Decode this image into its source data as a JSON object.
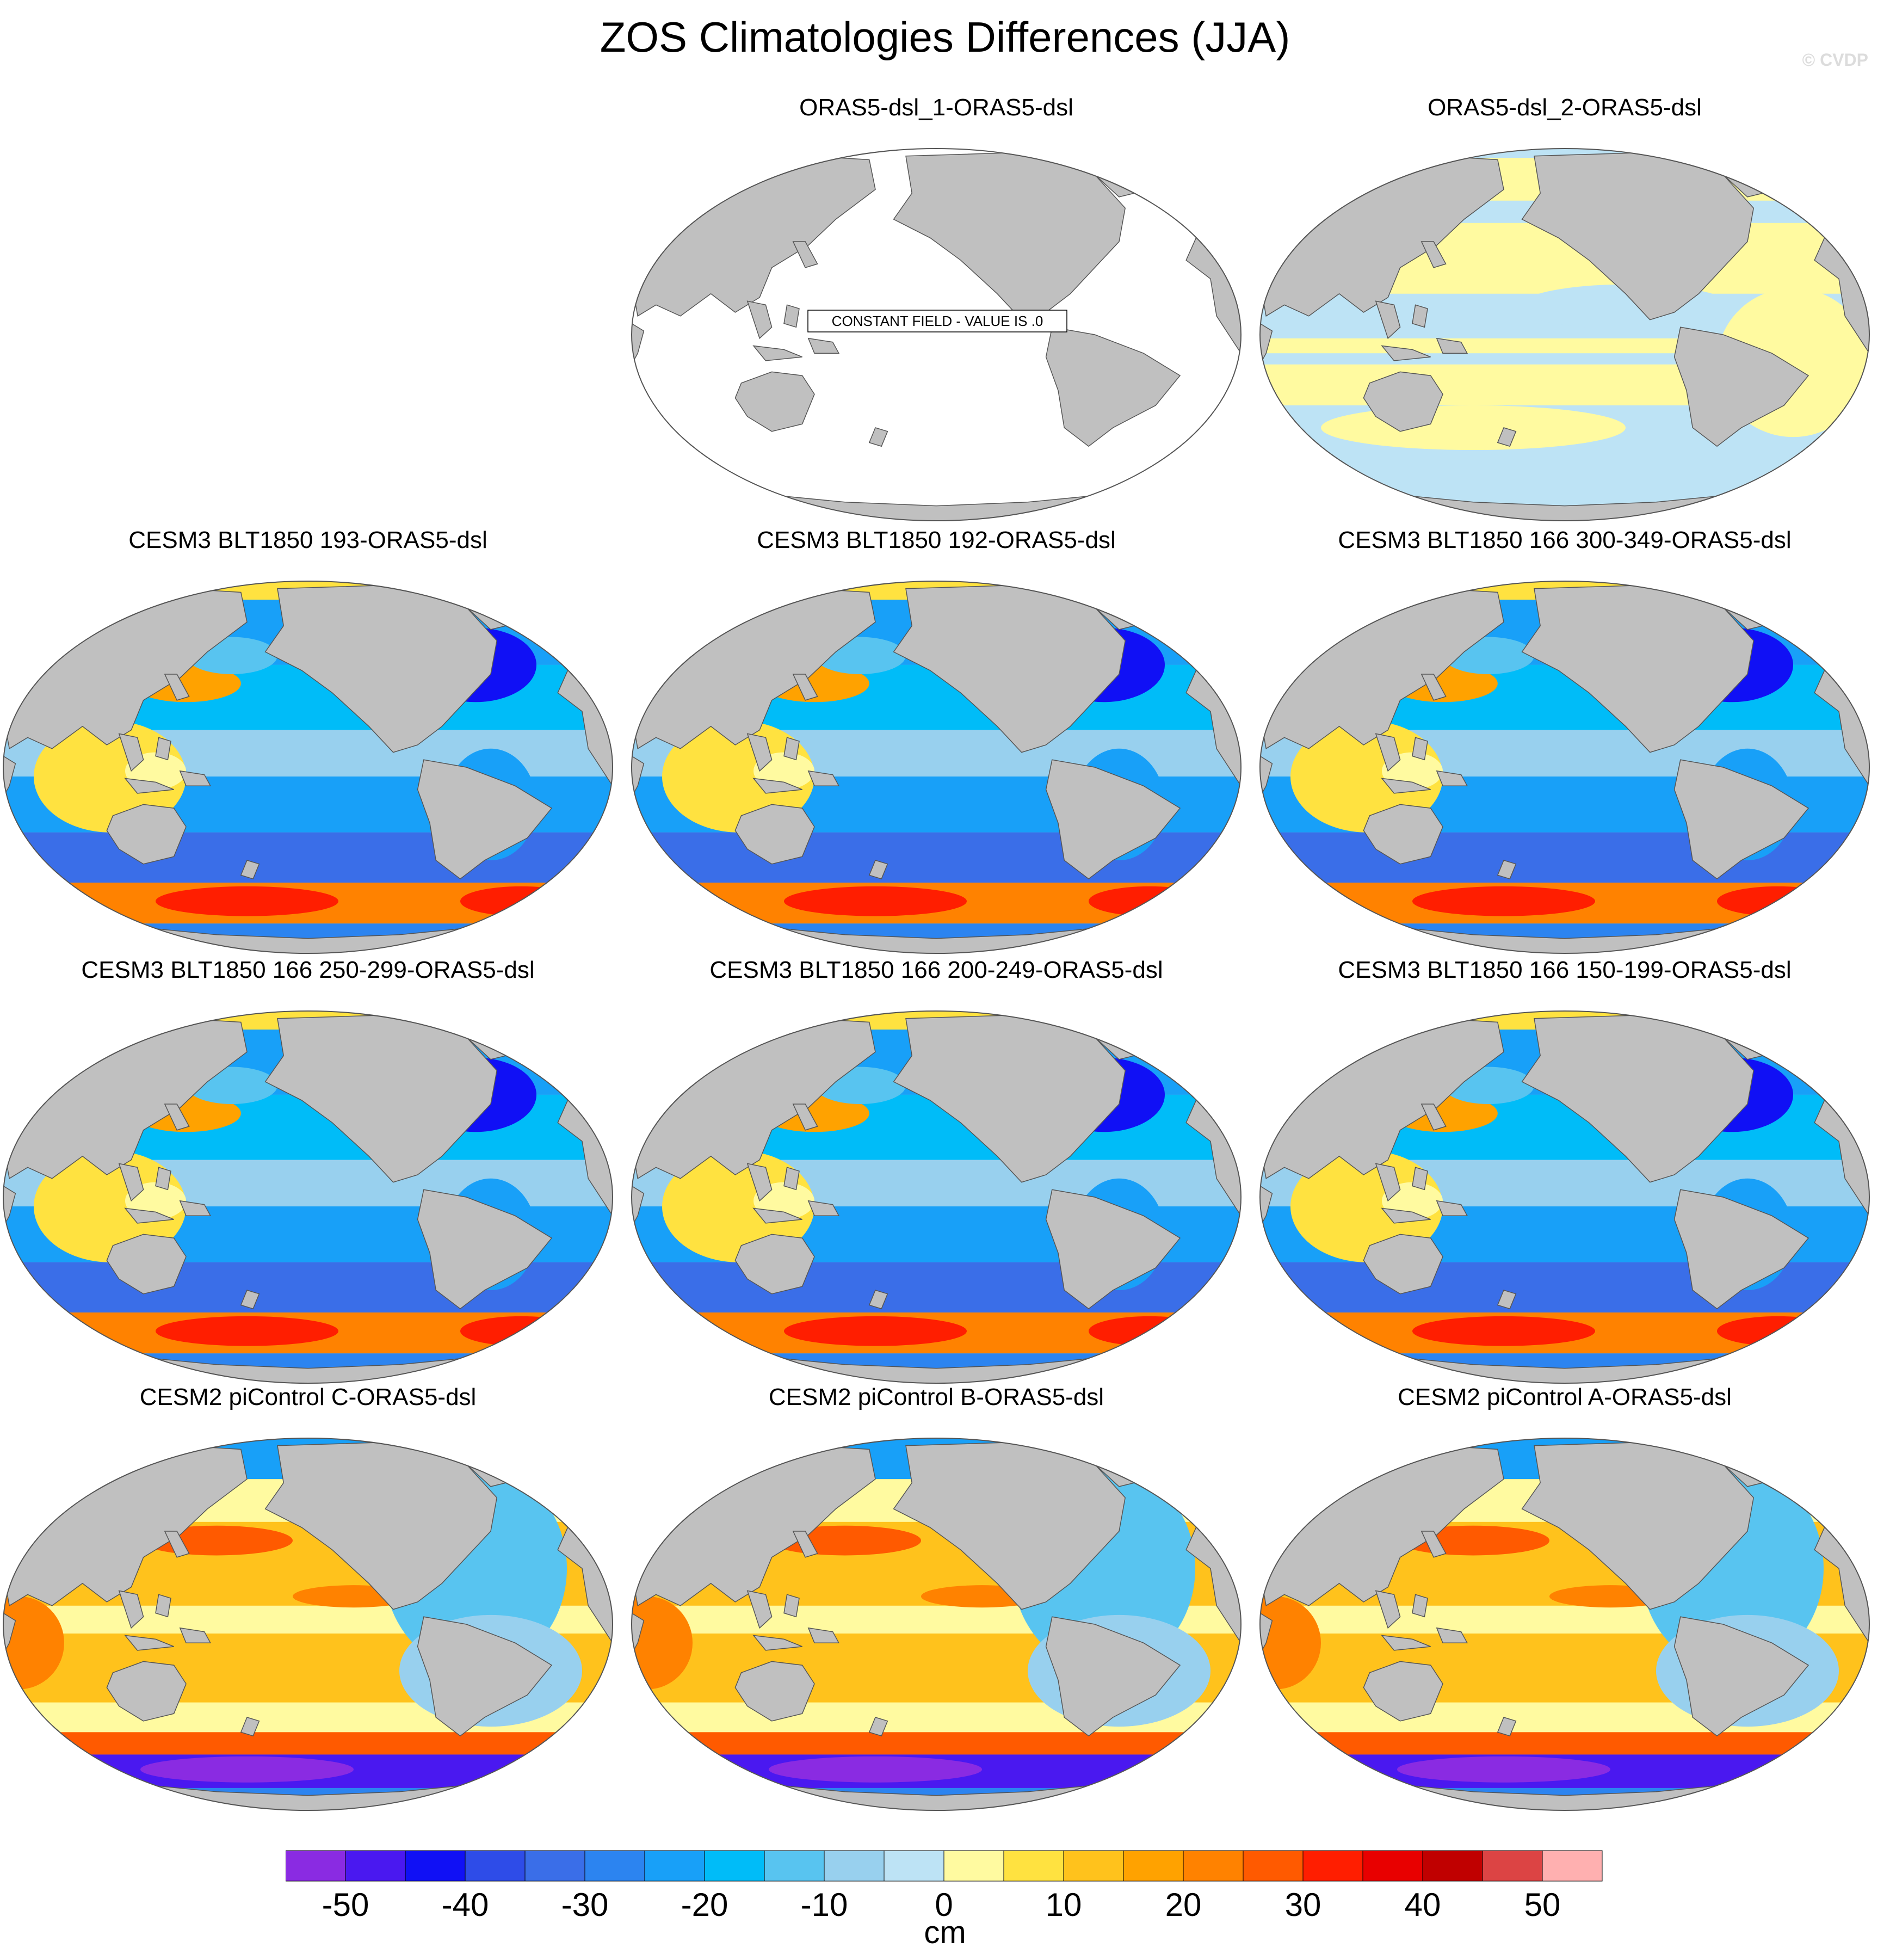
{
  "title": "ZOS Climatologies Differences (JJA)",
  "credit": "© CVDP",
  "constant_field_label": "CONSTANT FIELD - VALUE IS .0",
  "colors": {
    "land": "#c0c0c0",
    "coast": "#555555",
    "background": "#ffffff"
  },
  "panels": [
    {
      "title": "ORAS5-dsl_1-ORAS5-dsl",
      "pattern": "constant"
    },
    {
      "title": "ORAS5-dsl_2-ORAS5-dsl",
      "pattern": "small"
    },
    {
      "title": "CESM3 BLT1850 193-ORAS5-dsl",
      "pattern": "cesm3"
    },
    {
      "title": "CESM3 BLT1850 192-ORAS5-dsl",
      "pattern": "cesm3"
    },
    {
      "title": "CESM3 BLT1850 166 300-349-ORAS5-dsl",
      "pattern": "cesm3"
    },
    {
      "title": "CESM3 BLT1850 166 250-299-ORAS5-dsl",
      "pattern": "cesm3"
    },
    {
      "title": "CESM3 BLT1850 166 200-249-ORAS5-dsl",
      "pattern": "cesm3"
    },
    {
      "title": "CESM3 BLT1850 166 150-199-ORAS5-dsl",
      "pattern": "cesm3"
    },
    {
      "title": "CESM2 piControl C-ORAS5-dsl",
      "pattern": "cesm2"
    },
    {
      "title": "CESM2 piControl B-ORAS5-dsl",
      "pattern": "cesm2"
    },
    {
      "title": "CESM2 piControl A-ORAS5-dsl",
      "pattern": "cesm2"
    }
  ],
  "colorbar": {
    "unit": "cm",
    "tick_labels": [
      "-50",
      "-40",
      "-30",
      "-20",
      "-10",
      "0",
      "10",
      "20",
      "30",
      "40",
      "50"
    ],
    "tick_values": [
      -50,
      -40,
      -30,
      -20,
      -10,
      0,
      10,
      20,
      30,
      40,
      50
    ],
    "box_colors": [
      "#8a2be2",
      "#4a18f0",
      "#1010f5",
      "#2e4ce8",
      "#3a6ee8",
      "#2c84f0",
      "#18a0f8",
      "#00bcf8",
      "#58c4f0",
      "#98d0ee",
      "#bde3f5",
      "#fffaa0",
      "#ffe240",
      "#ffc21c",
      "#ffa200",
      "#ff8200",
      "#ff5a00",
      "#ff1e00",
      "#e80000",
      "#c00000",
      "#dc4444",
      "#ffb0b0"
    ]
  }
}
